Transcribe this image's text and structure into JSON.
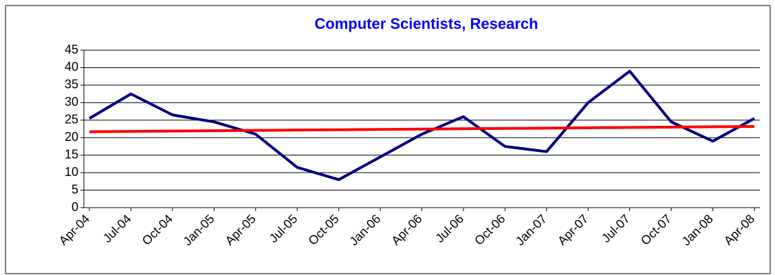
{
  "chart_data": {
    "type": "line",
    "title": "Computer Scientists, Research",
    "categories": [
      "Apr-04",
      "Jul-04",
      "Oct-04",
      "Jan-05",
      "Apr-05",
      "Jul-05",
      "Oct-05",
      "Jan-06",
      "Apr-06",
      "Jul-06",
      "Oct-06",
      "Jan-07",
      "Apr-07",
      "Jul-07",
      "Oct-07",
      "Jan-08",
      "Apr-08"
    ],
    "series": [
      {
        "color": "#000080",
        "values": [
          25.5,
          32.5,
          26.5,
          24.5,
          21,
          11.5,
          8,
          14.5,
          21,
          26,
          17.5,
          16,
          30,
          39,
          24.5,
          19,
          25.5
        ]
      },
      {
        "color": "#ff0000",
        "values": [
          21.7,
          21.79,
          21.89,
          21.98,
          22.08,
          22.17,
          22.26,
          22.36,
          22.45,
          22.54,
          22.64,
          22.73,
          22.83,
          22.92,
          23.01,
          23.11,
          23.2
        ]
      }
    ],
    "ylim": [
      0,
      45
    ],
    "yticks": [
      0,
      5,
      10,
      15,
      20,
      25,
      30,
      35,
      40,
      45
    ],
    "grid": true
  }
}
